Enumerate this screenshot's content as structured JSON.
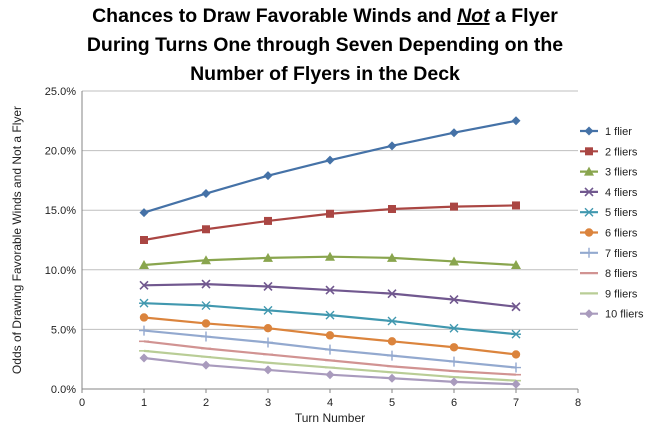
{
  "chart_data": {
    "type": "line",
    "title_lines": [
      [
        "Chances to Draw Favorable Winds and ",
        "Not",
        " a Flyer"
      ],
      [
        "During Turns One through Seven Depending on the"
      ],
      [
        "Number of Flyers in the Deck"
      ]
    ],
    "xlabel": "Turn Number",
    "ylabel": "Odds of Drawing Favorable Winds and Not a Flyer",
    "xlim": [
      0,
      8
    ],
    "ylim": [
      0,
      0.25
    ],
    "x_ticks": [
      "0",
      "1",
      "2",
      "3",
      "4",
      "5",
      "6",
      "7",
      "8"
    ],
    "y_ticks": [
      "0.0%",
      "5.0%",
      "10.0%",
      "15.0%",
      "20.0%",
      "25.0%"
    ],
    "grid": "horizontal",
    "legend_position": "right",
    "x": [
      1,
      2,
      3,
      4,
      5,
      6,
      7
    ],
    "series": [
      {
        "name": "1 flier",
        "color": "#4572A7",
        "marker": "diamond",
        "values": [
          0.148,
          0.164,
          0.179,
          0.192,
          0.204,
          0.215,
          0.225
        ]
      },
      {
        "name": "2 fliers",
        "color": "#AA4643",
        "marker": "square",
        "values": [
          0.125,
          0.134,
          0.141,
          0.147,
          0.151,
          0.153,
          0.154
        ]
      },
      {
        "name": "3 fliers",
        "color": "#89A54E",
        "marker": "triangle",
        "values": [
          0.104,
          0.108,
          0.11,
          0.111,
          0.11,
          0.107,
          0.104
        ]
      },
      {
        "name": "4 fliers",
        "color": "#71588F",
        "marker": "x",
        "values": [
          0.087,
          0.088,
          0.086,
          0.083,
          0.08,
          0.075,
          0.069
        ]
      },
      {
        "name": "5 fliers",
        "color": "#4198AF",
        "marker": "star",
        "values": [
          0.072,
          0.07,
          0.066,
          0.062,
          0.057,
          0.051,
          0.046
        ]
      },
      {
        "name": "6 fliers",
        "color": "#DB843D",
        "marker": "circle",
        "values": [
          0.06,
          0.055,
          0.051,
          0.045,
          0.04,
          0.035,
          0.029
        ]
      },
      {
        "name": "7 fliers",
        "color": "#93A9CF",
        "marker": "plus",
        "values": [
          0.049,
          0.044,
          0.039,
          0.033,
          0.028,
          0.023,
          0.018
        ]
      },
      {
        "name": "8 fliers",
        "color": "#D19392",
        "marker": "dash",
        "values": [
          0.04,
          0.034,
          0.029,
          0.024,
          0.019,
          0.015,
          0.012
        ]
      },
      {
        "name": "9 fliers",
        "color": "#B9CD96",
        "marker": "dash",
        "values": [
          0.032,
          0.027,
          0.022,
          0.018,
          0.014,
          0.01,
          0.007
        ]
      },
      {
        "name": "10 fliers",
        "color": "#A99BBD",
        "marker": "diamond",
        "values": [
          0.026,
          0.02,
          0.016,
          0.012,
          0.009,
          0.006,
          0.004
        ]
      }
    ]
  }
}
